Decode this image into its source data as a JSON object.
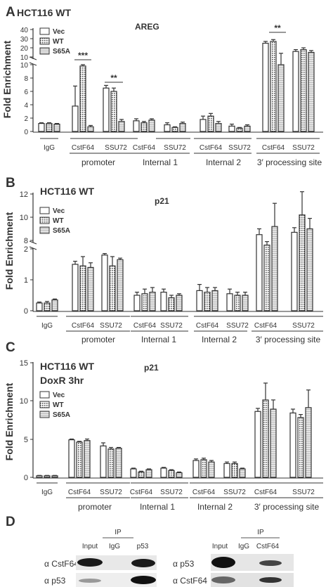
{
  "figure": {
    "panel_labels": [
      "A",
      "B",
      "C",
      "D"
    ],
    "ylabel": "Fold Enrichment",
    "groups": [
      "promoter",
      "Internal 1",
      "Internal 2",
      "3′ processing site"
    ],
    "sub_labels": [
      "IgG",
      "CstF64",
      "SSU72",
      "CstF64",
      "SSU72",
      "CstF64",
      "SSU72",
      "CstF64",
      "SSU72"
    ],
    "legend": [
      "Vec",
      "WT",
      "S65A"
    ]
  },
  "chart_data": [
    {
      "type": "bar",
      "panel": "A",
      "title": "AREG",
      "header": "HCT116 WT",
      "header2": "",
      "yticks_top": [
        "40",
        "30",
        "20",
        "10"
      ],
      "yticks_bottom": [
        "10",
        "8",
        "6",
        "4",
        "2",
        "0"
      ],
      "significance": [
        "***",
        "**",
        "**"
      ],
      "categories": [
        "IgG",
        "CstF64 (promoter)",
        "SSU72 (promoter)",
        "CstF64 (Internal 1)",
        "SSU72 (Internal 1)",
        "CstF64 (Internal 2)",
        "SSU72 (Internal 2)",
        "CstF64 (3' site)",
        "SSU72 (3' site)"
      ],
      "series": [
        {
          "name": "Vec",
          "values": [
            1.2,
            3.8,
            6.5,
            1.6,
            1.0,
            1.8,
            0.8,
            25,
            16
          ],
          "errors": [
            0.1,
            3.0,
            0.4,
            0.3,
            0.3,
            0.5,
            0.3,
            2,
            2
          ]
        },
        {
          "name": "WT",
          "values": [
            1.2,
            9.8,
            6.0,
            1.3,
            0.6,
            2.3,
            0.5,
            27,
            18
          ],
          "errors": [
            0.1,
            0.2,
            0.5,
            0.2,
            0.1,
            0.4,
            0.1,
            2,
            2
          ]
        },
        {
          "name": "S65A",
          "values": [
            1.1,
            0.7,
            1.5,
            1.7,
            1.2,
            1.2,
            0.8,
            10,
            15
          ],
          "errors": [
            0.1,
            0.2,
            0.3,
            0.2,
            0.2,
            0.3,
            0.2,
            4,
            2
          ]
        }
      ],
      "axis_break": [
        10,
        10
      ],
      "ylim": [
        0,
        40
      ]
    },
    {
      "type": "bar",
      "panel": "B",
      "title": "p21",
      "header": "HCT116 WT",
      "header2": "",
      "yticks_top": [
        "12",
        "10",
        "8"
      ],
      "yticks_bottom": [
        "2",
        "1",
        "0"
      ],
      "significance": [],
      "categories": [
        "IgG",
        "CstF64 (promoter)",
        "SSU72 (promoter)",
        "CstF64 (Internal 1)",
        "SSU72 (Internal 1)",
        "CstF64 (Internal 2)",
        "SSU72 (Internal 2)",
        "CstF64 (3' site)",
        "SSU72 (3' site)"
      ],
      "series": [
        {
          "name": "Vec",
          "values": [
            0.25,
            1.5,
            1.8,
            0.5,
            0.6,
            0.65,
            0.55,
            8.5,
            8.7
          ],
          "errors": [
            0.03,
            0.1,
            0.05,
            0.1,
            0.1,
            0.2,
            0.15,
            0.5,
            0.4
          ]
        },
        {
          "name": "WT",
          "values": [
            0.25,
            1.45,
            1.45,
            0.55,
            0.42,
            0.6,
            0.5,
            7.6,
            10.2
          ],
          "errors": [
            0.05,
            0.3,
            0.3,
            0.15,
            0.08,
            0.15,
            0.1,
            0.3,
            2.0
          ]
        },
        {
          "name": "S65A",
          "values": [
            0.35,
            1.4,
            1.65,
            0.6,
            0.5,
            0.65,
            0.5,
            9.2,
            9.0
          ],
          "errors": [
            0.03,
            0.15,
            0.05,
            0.15,
            0.05,
            0.1,
            0.1,
            2.0,
            0.9
          ]
        }
      ],
      "axis_break": [
        2,
        8
      ],
      "ylim": [
        0,
        12
      ]
    },
    {
      "type": "bar",
      "panel": "C",
      "title": "p21",
      "header": "HCT116 WT",
      "header2": "DoxR 3hr",
      "yticks": [
        "15",
        "10",
        "5",
        "0"
      ],
      "significance": [],
      "categories": [
        "IgG",
        "CstF64 (promoter)",
        "SSU72 (promoter)",
        "CstF64 (Internal 1)",
        "SSU72 (Internal 1)",
        "CstF64 (Internal 2)",
        "SSU72 (Internal 2)",
        "CstF64 (3' site)",
        "SSU72 (3' site)"
      ],
      "series": [
        {
          "name": "Vec",
          "values": [
            0.2,
            4.9,
            4.1,
            1.1,
            1.2,
            2.2,
            1.8,
            8.6,
            8.4
          ],
          "errors": [
            0.05,
            0.1,
            0.4,
            0.1,
            0.1,
            0.2,
            0.2,
            0.4,
            0.5
          ]
        },
        {
          "name": "WT",
          "values": [
            0.2,
            4.6,
            3.7,
            0.7,
            0.9,
            2.3,
            1.8,
            10.1,
            7.8
          ],
          "errors": [
            0.05,
            0.1,
            0.2,
            0.1,
            0.1,
            0.2,
            0.2,
            2.2,
            0.4
          ]
        },
        {
          "name": "S65A",
          "values": [
            0.2,
            4.8,
            3.8,
            1.0,
            0.6,
            2.0,
            1.1,
            8.9,
            9.1
          ],
          "errors": [
            0.05,
            0.2,
            0.1,
            0.1,
            0.1,
            0.2,
            0.1,
            1.2,
            2.3
          ]
        }
      ],
      "ylim": [
        0,
        15
      ]
    }
  ],
  "blots": {
    "ip_label": "IP",
    "left": {
      "cols": [
        "Input",
        "IgG",
        "p53"
      ],
      "rows": [
        "α CstF64",
        "α p53"
      ]
    },
    "right": {
      "cols": [
        "Input",
        "IgG",
        "CstF64"
      ],
      "rows": [
        "α p53",
        "α CstF64"
      ]
    }
  }
}
